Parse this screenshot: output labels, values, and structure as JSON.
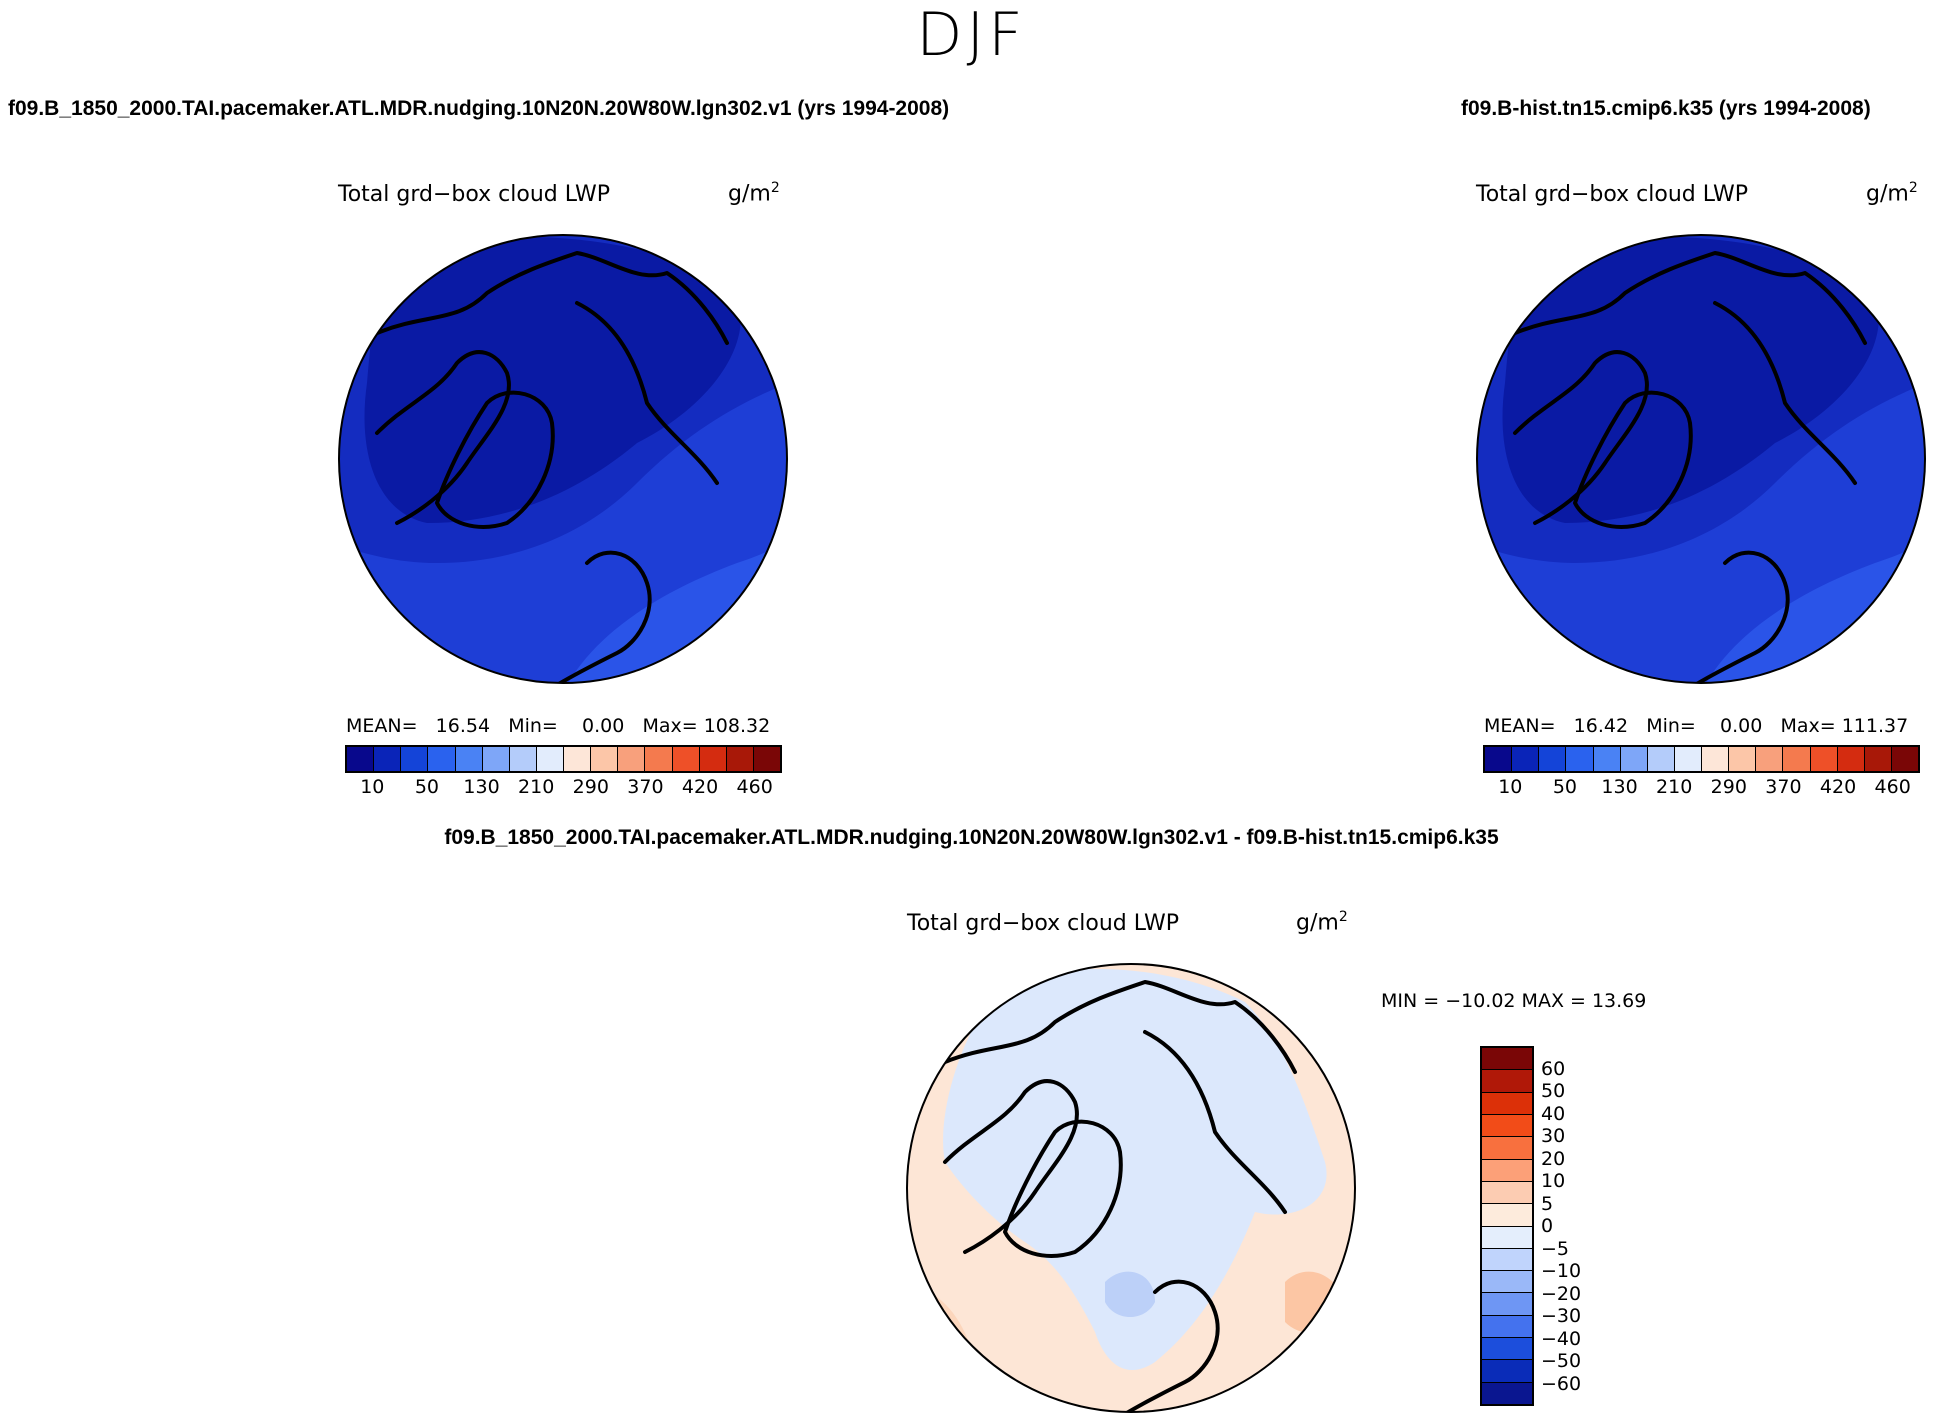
{
  "season": "DJF",
  "panels": {
    "left": {
      "case": "f09.B_1850_2000.TAI.pacemaker.ATL.MDR.nudging.10N20N.20W80W.lgn302.v1 (yrs 1994-2008)",
      "variable": "Total grd−box cloud LWP",
      "units": "g/m",
      "units_sup": "2",
      "mean_label": "MEAN=",
      "mean": "16.54",
      "min_label": "Min=",
      "min": "0.00",
      "max_label": "Max=",
      "max": "108.32"
    },
    "right": {
      "case": "f09.B-hist.tn15.cmip6.k35 (yrs 1994-2008)",
      "variable": "Total grd−box cloud LWP",
      "units": "g/m",
      "units_sup": "2",
      "mean_label": "MEAN=",
      "mean": "16.42",
      "min_label": "Min=",
      "min": "0.00",
      "max_label": "Max=",
      "max": "111.37"
    },
    "diff": {
      "case": "f09.B_1850_2000.TAI.pacemaker.ATL.MDR.nudging.10N20N.20W80W.lgn302.v1 - f09.B-hist.tn15.cmip6.k35",
      "variable": "Total grd−box cloud LWP",
      "units": "g/m",
      "units_sup": "2",
      "minmax": "MIN = −10.02 MAX =  13.69"
    }
  },
  "abs_colorbar": {
    "colors": [
      "#08088c",
      "#0a24b8",
      "#1444d8",
      "#2a62ee",
      "#4a82f4",
      "#7ea6f8",
      "#b4ccfa",
      "#e2ecfc",
      "#fde6d8",
      "#fcc6a8",
      "#f8a07c",
      "#f47a4e",
      "#ee5028",
      "#d42c10",
      "#a81808",
      "#7a0606"
    ],
    "ticks": [
      "10",
      "50",
      "130",
      "210",
      "290",
      "370",
      "420",
      "460"
    ]
  },
  "diff_colorbar": {
    "colors": [
      "#7a0606",
      "#b01808",
      "#dc3008",
      "#f24c18",
      "#f8703e",
      "#fca078",
      "#fcccb2",
      "#fdebdc",
      "#e4eefc",
      "#c0d4fc",
      "#9ab8f8",
      "#6e96f4",
      "#4472ee",
      "#1c4edc",
      "#0a2cb8",
      "#0a1690"
    ],
    "ticks": [
      "60",
      "50",
      "40",
      "30",
      "20",
      "10",
      "5",
      "0",
      "−5",
      "−10",
      "−20",
      "−30",
      "−40",
      "−50",
      "−60"
    ]
  }
}
